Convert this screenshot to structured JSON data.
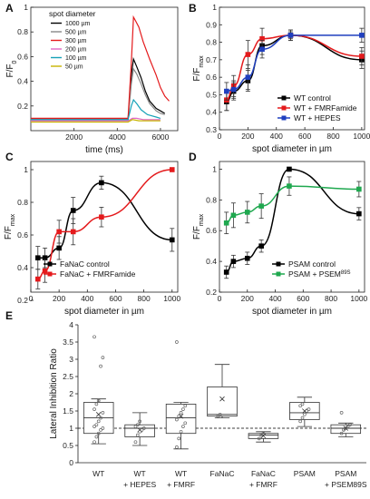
{
  "chart_data": [
    {
      "panel": "A",
      "type": "line",
      "xlabel": "time (ms)",
      "ylabel": "F/F0",
      "xticks": [
        2000,
        4000,
        6000
      ],
      "yticks": [
        0.2,
        0.4,
        0.6,
        0.8,
        1
      ],
      "xlim": [
        0,
        6800
      ],
      "ylim": [
        0,
        1.0
      ],
      "legend_title": "spot diameter",
      "legend_placement": "top-left",
      "series": [
        {
          "name": "1000 µm",
          "color": "#000000",
          "x": [
            0,
            1000,
            2000,
            3000,
            4000,
            4500,
            4650,
            4750,
            4900,
            5100,
            5300,
            5500,
            5800,
            6000,
            6200
          ],
          "y": [
            0.09,
            0.09,
            0.09,
            0.09,
            0.09,
            0.09,
            0.45,
            0.58,
            0.52,
            0.43,
            0.32,
            0.24,
            0.18,
            0.16,
            0.14
          ]
        },
        {
          "name": "500 µm",
          "color": "#888888",
          "x": [
            0,
            1000,
            2000,
            3000,
            4000,
            4500,
            4650,
            4750,
            4900,
            5100,
            5300,
            5500,
            5800,
            6000,
            6200
          ],
          "y": [
            0.09,
            0.09,
            0.09,
            0.09,
            0.09,
            0.09,
            0.38,
            0.5,
            0.46,
            0.38,
            0.29,
            0.22,
            0.16,
            0.14,
            0.13
          ]
        },
        {
          "name": "300 µm",
          "color": "#e41a1c",
          "x": [
            0,
            1000,
            2000,
            3000,
            4000,
            4500,
            4650,
            4750,
            4850,
            5000,
            5200,
            5500,
            5800,
            6000,
            6200,
            6400
          ],
          "y": [
            0.1,
            0.1,
            0.1,
            0.1,
            0.1,
            0.1,
            0.55,
            0.92,
            0.89,
            0.84,
            0.72,
            0.58,
            0.45,
            0.35,
            0.28,
            0.24
          ]
        },
        {
          "name": "200 µm",
          "color": "#e066c4",
          "x": [
            0,
            1000,
            2000,
            3000,
            4000,
            4500,
            4600,
            4700,
            4900,
            5200,
            5500,
            6000
          ],
          "y": [
            0.08,
            0.08,
            0.08,
            0.08,
            0.08,
            0.08,
            0.09,
            0.1,
            0.1,
            0.09,
            0.09,
            0.09
          ]
        },
        {
          "name": "100 µm",
          "color": "#17a2b8",
          "x": [
            0,
            1000,
            2000,
            3000,
            4000,
            4500,
            4650,
            4750,
            4900,
            5100,
            5400,
            5800,
            6000
          ],
          "y": [
            0.09,
            0.09,
            0.09,
            0.09,
            0.09,
            0.09,
            0.2,
            0.25,
            0.22,
            0.17,
            0.13,
            0.11,
            0.1
          ]
        },
        {
          "name": "50 µm",
          "color": "#c8b400",
          "x": [
            0,
            1000,
            2000,
            3000,
            4000,
            4500,
            4700,
            5000,
            5500,
            6000
          ],
          "y": [
            0.07,
            0.07,
            0.07,
            0.07,
            0.07,
            0.07,
            0.09,
            0.08,
            0.08,
            0.08
          ]
        }
      ]
    },
    {
      "panel": "B",
      "type": "line",
      "xlabel": "spot diameter in µm",
      "ylabel": "F/Fmax",
      "xticks": [
        0,
        200,
        400,
        600,
        800,
        1000
      ],
      "yticks": [
        0.3,
        0.4,
        0.5,
        0.6,
        0.7,
        0.8,
        0.9,
        1
      ],
      "xlim": [
        0,
        1020
      ],
      "ylim": [
        0.3,
        1.0
      ],
      "legend_placement": "bottom-right",
      "series": [
        {
          "name": "WT control",
          "color": "#000000",
          "x": [
            50,
            100,
            200,
            300,
            500,
            1000
          ],
          "y": [
            0.46,
            0.52,
            0.58,
            0.78,
            0.84,
            0.7
          ],
          "err": [
            0.05,
            0.05,
            0.06,
            0.05,
            0.03,
            0.05
          ]
        },
        {
          "name": "WT + FMRFamide",
          "color": "#e41a1c",
          "x": [
            50,
            100,
            200,
            300,
            500,
            1000
          ],
          "y": [
            0.47,
            0.55,
            0.73,
            0.82,
            0.84,
            0.72
          ],
          "err": [
            0.06,
            0.06,
            0.08,
            0.06,
            0.03,
            0.05
          ]
        },
        {
          "name": "WT + HEPES",
          "color": "#1f3fbf",
          "x": [
            50,
            100,
            200,
            300,
            500,
            1000
          ],
          "y": [
            0.52,
            0.53,
            0.6,
            0.76,
            0.84,
            0.84
          ],
          "err": [
            0.05,
            0.05,
            0.07,
            0.05,
            0.02,
            0.04
          ]
        }
      ]
    },
    {
      "panel": "C",
      "type": "line",
      "xlabel": "spot diameter in µm",
      "ylabel": "F/Fmax",
      "xticks": [
        0,
        200,
        400,
        600,
        800,
        1000
      ],
      "yticks": [
        0.2,
        0.4,
        0.6,
        0.8,
        1
      ],
      "xlim": [
        0,
        1040
      ],
      "ylim": [
        0.25,
        1.05
      ],
      "legend_placement": "bottom-left",
      "series": [
        {
          "name": "FaNaC control",
          "color": "#000000",
          "x": [
            50,
            100,
            200,
            300,
            500,
            1000
          ],
          "y": [
            0.46,
            0.46,
            0.52,
            0.75,
            0.92,
            0.57
          ],
          "err": [
            0.07,
            0.06,
            0.07,
            0.08,
            0.04,
            0.07
          ]
        },
        {
          "name": "FaNaC + FMRFamide",
          "color": "#e41a1c",
          "x": [
            50,
            100,
            200,
            300,
            500,
            1000
          ],
          "y": [
            0.33,
            0.38,
            0.62,
            0.62,
            0.71,
            1.0
          ],
          "err": [
            0.06,
            0.07,
            0.07,
            0.08,
            0.06,
            0.0
          ]
        }
      ]
    },
    {
      "panel": "D",
      "type": "line",
      "xlabel": "spot diameter in µm",
      "ylabel": "F/Fmax",
      "xticks": [
        0,
        200,
        400,
        600,
        800,
        1000
      ],
      "yticks": [
        0.2,
        0.4,
        0.6,
        0.8,
        1
      ],
      "xlim": [
        0,
        1040
      ],
      "ylim": [
        0.2,
        1.05
      ],
      "legend_placement": "bottom-right",
      "series": [
        {
          "name": "PSAM control",
          "color": "#000000",
          "x": [
            50,
            100,
            200,
            300,
            500,
            1000
          ],
          "y": [
            0.33,
            0.4,
            0.42,
            0.5,
            1.0,
            0.71
          ],
          "err": [
            0.04,
            0.04,
            0.04,
            0.04,
            0.0,
            0.04
          ]
        },
        {
          "name": "PSAM + PSEM",
          "name_sup": "89S",
          "color": "#1fa84f",
          "x": [
            50,
            100,
            200,
            300,
            500,
            1000
          ],
          "y": [
            0.65,
            0.7,
            0.72,
            0.76,
            0.89,
            0.87
          ],
          "err": [
            0.07,
            0.08,
            0.07,
            0.08,
            0.06,
            0.05
          ]
        }
      ]
    },
    {
      "panel": "E",
      "type": "box",
      "ylabel": "Lateral Inhibition Ratio",
      "yticks": [
        0,
        0.5,
        1,
        1.5,
        2,
        2.5,
        3,
        3.5,
        4
      ],
      "ylim": [
        0,
        4
      ],
      "reference_line": 1,
      "categories": [
        {
          "line1": "WT",
          "line2": "",
          "q1": 0.85,
          "median": 1.3,
          "q3": 1.75,
          "wlo": 0.55,
          "whi": 1.85,
          "mean": 1.4,
          "points": [
            0.6,
            0.75,
            0.85,
            0.95,
            1.0,
            1.05,
            1.1,
            1.2,
            1.3,
            1.45,
            1.55,
            1.7,
            1.8,
            2.8,
            3.05,
            3.65
          ]
        },
        {
          "line1": "WT",
          "line2": "+ HEPES",
          "q1": 0.75,
          "median": 1.0,
          "q3": 1.1,
          "wlo": 0.5,
          "whi": 1.45,
          "mean": 0.95,
          "points": [
            0.6,
            0.8,
            0.9,
            0.95,
            1.0,
            1.05,
            1.1,
            1.2
          ]
        },
        {
          "line1": "WT",
          "line2": "+ FMRF",
          "q1": 0.85,
          "median": 1.3,
          "q3": 1.7,
          "wlo": 0.4,
          "whi": 1.75,
          "mean": 1.35,
          "points": [
            0.45,
            0.7,
            0.9,
            1.05,
            1.15,
            1.25,
            1.35,
            1.45,
            1.55,
            1.65,
            3.5
          ]
        },
        {
          "line1": "FaNaC",
          "line2": "",
          "q1": 1.35,
          "median": 1.4,
          "q3": 2.2,
          "wlo": 1.3,
          "whi": 2.85,
          "mean": 1.85,
          "points": [
            1.35,
            1.4
          ]
        },
        {
          "line1": "FaNaC",
          "line2": "+ FMRF",
          "q1": 0.7,
          "median": 0.8,
          "q3": 0.85,
          "wlo": 0.6,
          "whi": 0.9,
          "mean": 0.78,
          "points": [
            0.7,
            0.8,
            0.85
          ]
        },
        {
          "line1": "PSAM",
          "line2": "",
          "q1": 1.25,
          "median": 1.45,
          "q3": 1.75,
          "wlo": 1.05,
          "whi": 1.9,
          "mean": 1.5,
          "points": [
            1.2,
            1.3,
            1.4,
            1.5,
            1.55,
            1.65,
            1.7
          ]
        },
        {
          "line1": "PSAM",
          "line2": "+ PSEM89S",
          "q1": 0.85,
          "median": 1.0,
          "q3": 1.1,
          "wlo": 0.75,
          "whi": 1.15,
          "mean": 1.0,
          "points": [
            0.85,
            0.95,
            1.0,
            1.05,
            1.1,
            1.45
          ]
        }
      ]
    }
  ],
  "colors": {
    "axis": "#222222",
    "box_fill": "#ffffff",
    "point": "#666666",
    "ref_line": "#000000"
  }
}
